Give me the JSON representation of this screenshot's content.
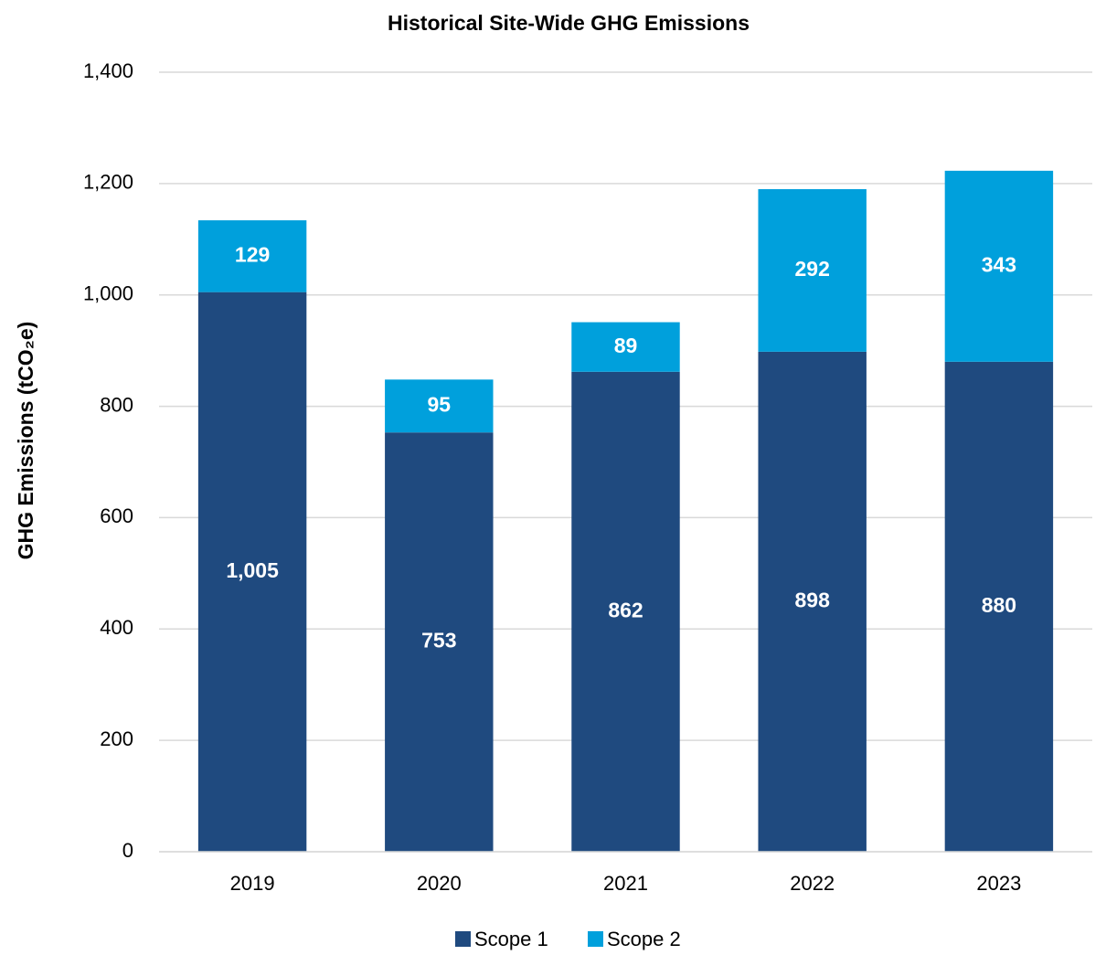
{
  "chart_data": {
    "type": "stacked_bar",
    "title": "Historical Site-Wide GHG Emissions",
    "y_label": "GHG Emissions (tCO₂e)",
    "categories": [
      "2019",
      "2020",
      "2021",
      "2022",
      "2023"
    ],
    "series": [
      {
        "name": "Scope 1",
        "color": "#1f4a7f",
        "values": [
          1005,
          753,
          862,
          898,
          880
        ],
        "value_labels": [
          "1,005",
          "753",
          "862",
          "898",
          "880"
        ]
      },
      {
        "name": "Scope 2",
        "color": "#00a0dc",
        "values": [
          129,
          95,
          89,
          292,
          343
        ]
      }
    ],
    "ylim": [
      0,
      1400
    ],
    "yticks": [
      0,
      200,
      400,
      600,
      800,
      {
        "value": 1000,
        "label": "1,000"
      },
      {
        "value": 1200,
        "label": "1,200"
      },
      {
        "value": 1400,
        "label": "1,400"
      }
    ],
    "grid": true,
    "legend": "bottom"
  }
}
